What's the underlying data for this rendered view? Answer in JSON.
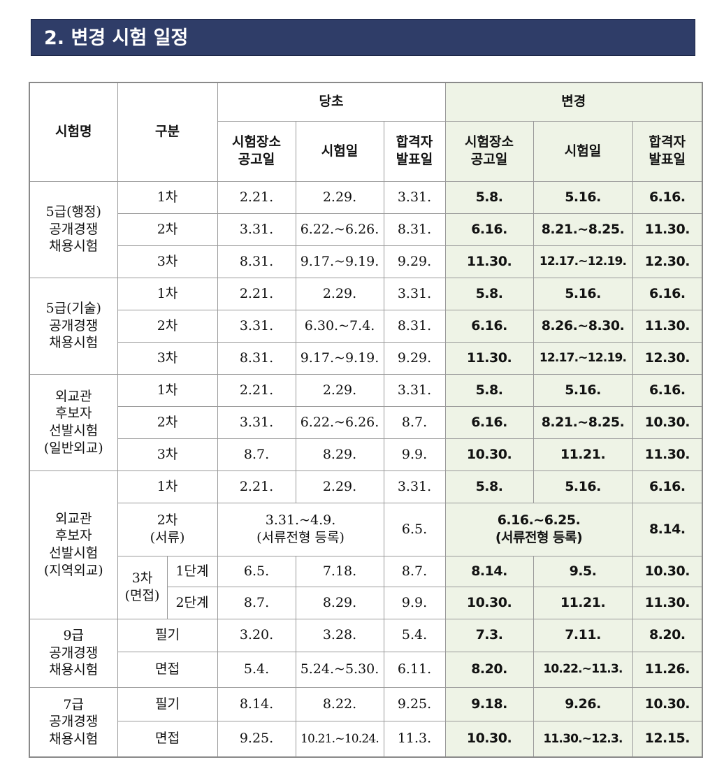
{
  "header": {
    "title": "2. 변경 시험 일정"
  },
  "table": {
    "head": {
      "exam": "시험명",
      "category": "구분",
      "original": "당초",
      "changed": "변경",
      "cols": [
        "시험장소\n공고일",
        "시험일",
        "합격자\n발표일",
        "시험장소\n공고일",
        "시험일",
        "합격자\n발표일"
      ]
    },
    "groups": [
      {
        "name": "5급(행정)\n공개경쟁\n채용시험",
        "rows": [
          {
            "stage": "1차",
            "cells": [
              "2.21.",
              "2.29.",
              "3.31.",
              "5.8.",
              "5.16.",
              "6.16."
            ]
          },
          {
            "stage": "2차",
            "cells": [
              "3.31.",
              "6.22.~6.26.",
              "8.31.",
              "6.16.",
              "8.21.~8.25.",
              "11.30."
            ]
          },
          {
            "stage": "3차",
            "cells": [
              "8.31.",
              "9.17.~9.19.",
              "9.29.",
              "11.30.",
              "12.17.~12.19.",
              "12.30."
            ]
          }
        ]
      },
      {
        "name": "5급(기술)\n공개경쟁\n채용시험",
        "rows": [
          {
            "stage": "1차",
            "cells": [
              "2.21.",
              "2.29.",
              "3.31.",
              "5.8.",
              "5.16.",
              "6.16."
            ]
          },
          {
            "stage": "2차",
            "cells": [
              "3.31.",
              "6.30.~7.4.",
              "8.31.",
              "6.16.",
              "8.26.~8.30.",
              "11.30."
            ]
          },
          {
            "stage": "3차",
            "cells": [
              "8.31.",
              "9.17.~9.19.",
              "9.29.",
              "11.30.",
              "12.17.~12.19.",
              "12.30."
            ]
          }
        ]
      },
      {
        "name": "외교관\n후보자\n선발시험\n(일반외교)",
        "rows": [
          {
            "stage": "1차",
            "cells": [
              "2.21.",
              "2.29.",
              "3.31.",
              "5.8.",
              "5.16.",
              "6.16."
            ]
          },
          {
            "stage": "2차",
            "cells": [
              "3.31.",
              "6.22.~6.26.",
              "8.7.",
              "6.16.",
              "8.21.~8.25.",
              "10.30."
            ]
          },
          {
            "stage": "3차",
            "cells": [
              "8.7.",
              "8.29.",
              "9.9.",
              "10.30.",
              "11.21.",
              "11.30."
            ]
          }
        ]
      },
      {
        "name": "외교관\n후보자\n선발시험\n(지역외교)",
        "rows": [
          {
            "stage": "1차",
            "cells": [
              "2.21.",
              "2.29.",
              "3.31.",
              "5.8.",
              "5.16.",
              "6.16."
            ]
          },
          {
            "stage": "2차\n(서류)",
            "cells": [
              "3.31.~4.9.\n(서류전형 등록)",
              "6.5.",
              "6.16.~6.25.\n(서류전형 등록)",
              "8.14."
            ]
          },
          {
            "stage": "3차\n(면접)",
            "parts": [
              {
                "stage": "1단계",
                "cells": [
                  "6.5.",
                  "7.18.",
                  "8.7.",
                  "8.14.",
                  "9.5.",
                  "10.30."
                ]
              },
              {
                "stage": "2단계",
                "cells": [
                  "8.7.",
                  "8.29.",
                  "9.9.",
                  "10.30.",
                  "11.21.",
                  "11.30."
                ]
              }
            ]
          }
        ]
      },
      {
        "name": "9급\n공개경쟁\n채용시험",
        "rows": [
          {
            "stage": "필기",
            "cells": [
              "3.20.",
              "3.28.",
              "5.4.",
              "7.3.",
              "7.11.",
              "8.20."
            ]
          },
          {
            "stage": "면접",
            "cells": [
              "5.4.",
              "5.24.~5.30.",
              "6.11.",
              "8.20.",
              "10.22.~11.3.",
              "11.26."
            ]
          }
        ]
      },
      {
        "name": "7급\n공개경쟁\n채용시험",
        "rows": [
          {
            "stage": "필기",
            "cells": [
              "8.14.",
              "8.22.",
              "9.25.",
              "9.18.",
              "9.26.",
              "10.30."
            ]
          },
          {
            "stage": "면접",
            "cells": [
              "9.25.",
              "10.21.~10.24.",
              "11.3.",
              "10.30.",
              "11.30.~12.3.",
              "12.15."
            ]
          }
        ]
      }
    ]
  }
}
